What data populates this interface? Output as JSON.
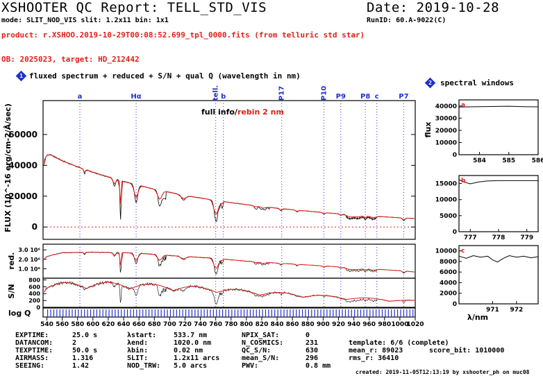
{
  "header": {
    "title": "XSHOOTER QC Report: TELL_STD_VIS",
    "date": "Date: 2019-10-28",
    "mode_line": "mode: SLIT_NOD_VIS slit: 1.2x11 bin: 1x1",
    "runid": "RunID: 60.A-9022(C)",
    "product": "product: r.XSHOO.2019-10-29T00:08:52.699_tpl_0000.fits (from telluric std star)",
    "ob_line": "OB: 2025023, target: HD_212442"
  },
  "panel1": {
    "badge": "1",
    "title": "fluxed spectrum + reduced + S/N + qual Q (wavelength in nm)",
    "legend_black": "full info/",
    "legend_red": "rebin 2 nm",
    "ylabel_flux": "FLUX (10^-16 erg/cm-2/Å/sec)",
    "ylabel_red": "red.",
    "ylabel_sn": "S/N",
    "ylabel_q": "log Q"
  },
  "panel2": {
    "badge": "2",
    "title": "spectral windows",
    "ylabel": "flux",
    "xlabel": "λ/nm"
  },
  "colors": {
    "black": "#000000",
    "red": "#e0201a",
    "blue": "#1f2fd0"
  },
  "chart_data": [
    {
      "type": "line",
      "name": "fluxed",
      "xlim": [
        535,
        1020
      ],
      "ylim": [
        -8000,
        82000
      ],
      "yticks": [
        0,
        20000,
        40000,
        60000
      ],
      "ytick_labels": [
        "0",
        "20000",
        "40000",
        "60000"
      ],
      "xticks": [
        540,
        560,
        580,
        600,
        620,
        640,
        660,
        680,
        700,
        720,
        740,
        760,
        780,
        800,
        820,
        840,
        860,
        880,
        900,
        920,
        940,
        960,
        980,
        1000,
        1020
      ],
      "xtick_labels": [
        "540",
        "560",
        "580",
        "600",
        "620",
        "640",
        "660",
        "680",
        "700",
        "720",
        "740",
        "760",
        "780",
        "800",
        "820",
        "840",
        "860",
        "880",
        "900",
        "920",
        "940",
        "960",
        "980",
        "1000",
        "1020"
      ],
      "zero_line": true,
      "continuum": {
        "x": [
          535,
          537,
          540,
          545,
          550,
          560,
          580,
          600,
          620,
          640,
          660,
          680,
          700,
          720,
          740,
          760,
          780,
          800,
          820,
          840,
          860,
          880,
          900,
          920,
          940,
          960,
          980,
          1000,
          1020
        ],
        "y": [
          30000,
          44000,
          46500,
          47000,
          45500,
          43000,
          39000,
          35500,
          32500,
          29500,
          27000,
          24500,
          22500,
          20500,
          18800,
          17300,
          15800,
          14500,
          13300,
          12200,
          11200,
          10300,
          9400,
          8600,
          7900,
          7200,
          6600,
          6000,
          5500
        ]
      },
      "absorptions": [
        {
          "x": 589.0,
          "depth": 0.08,
          "width": 1.2
        },
        {
          "x": 628.0,
          "depth": 0.15,
          "width": 2.0
        },
        {
          "x": 636.0,
          "depth": 0.85,
          "width": 1.0
        },
        {
          "x": 656.3,
          "depth": 0.42,
          "width": 2.8
        },
        {
          "x": 687.0,
          "depth": 0.35,
          "width": 3.0
        },
        {
          "x": 718.0,
          "depth": 0.15,
          "width": 4.0
        },
        {
          "x": 760.5,
          "depth": 0.75,
          "width": 3.2
        },
        {
          "x": 768.0,
          "depth": 0.1,
          "width": 1.5
        },
        {
          "x": 812.0,
          "depth": 0.07,
          "width": 3.0
        },
        {
          "x": 822.0,
          "depth": 0.1,
          "width": 3.0
        },
        {
          "x": 845.0,
          "depth": 0.12,
          "width": 2.0
        },
        {
          "x": 866.0,
          "depth": 0.1,
          "width": 2.0
        },
        {
          "x": 901.0,
          "depth": 0.1,
          "width": 2.0
        },
        {
          "x": 923.0,
          "depth": 0.12,
          "width": 2.0
        },
        {
          "x": 935.0,
          "depth": 0.25,
          "width": 5.0
        },
        {
          "x": 945.0,
          "depth": 0.2,
          "width": 5.0
        },
        {
          "x": 955.0,
          "depth": 0.22,
          "width": 2.0
        },
        {
          "x": 965.0,
          "depth": 0.18,
          "width": 4.0
        },
        {
          "x": 1005.0,
          "depth": 0.3,
          "width": 2.0
        }
      ],
      "line_markers": [
        {
          "x": 583,
          "label": "a"
        },
        {
          "x": 656.3,
          "label": "Hα"
        },
        {
          "x": 760,
          "label": "tell."
        },
        {
          "x": 770,
          "label": "b"
        },
        {
          "x": 846,
          "label": "P17"
        },
        {
          "x": 901,
          "label": "P10"
        },
        {
          "x": 923,
          "label": "P9"
        },
        {
          "x": 955,
          "label": "P8"
        },
        {
          "x": 970,
          "label": "c"
        },
        {
          "x": 1005,
          "label": "P7"
        }
      ]
    },
    {
      "type": "line",
      "name": "reduced",
      "ylim": [
        0,
        3600000
      ],
      "ytick_labels": [
        "3.0 10⁶",
        "2.0 10⁶",
        "1.0 10⁶"
      ],
      "yticks": [
        3000000,
        2000000,
        1000000
      ],
      "continuum": {
        "x": [
          535,
          540,
          560,
          600,
          640,
          660,
          700,
          740,
          760,
          780,
          800,
          840,
          880,
          920,
          960,
          1000,
          1020
        ],
        "y": [
          1900000,
          2300000,
          2700000,
          2750000,
          2700000,
          2650000,
          2400000,
          2200000,
          2100000,
          1950000,
          1800000,
          1600000,
          1400000,
          1200000,
          1000000,
          800000,
          650000
        ]
      }
    },
    {
      "type": "line",
      "name": "S/N",
      "ylim": [
        0,
        850
      ],
      "yticks": [
        800,
        600,
        400,
        200,
        0
      ],
      "ytick_labels": [
        "800",
        "600",
        "400",
        "200",
        "0"
      ],
      "continuum": {
        "x": [
          535,
          540,
          560,
          600,
          640,
          660,
          700,
          740,
          760,
          780,
          800,
          840,
          880,
          920,
          960,
          1000,
          1020
        ],
        "y": [
          550,
          680,
          720,
          730,
          720,
          700,
          650,
          600,
          580,
          540,
          500,
          440,
          380,
          320,
          270,
          220,
          200
        ]
      }
    },
    {
      "type": "bar",
      "name": "quality",
      "ylim": [
        0,
        1
      ],
      "flag_positions": [
        541,
        545,
        549,
        553,
        557,
        561,
        565,
        569,
        573,
        577,
        581,
        585,
        589,
        593,
        597,
        601,
        605,
        609,
        613,
        617,
        621,
        625,
        629,
        633,
        637,
        641,
        645,
        649,
        653,
        657,
        661,
        665,
        669,
        673,
        677,
        681,
        685,
        689,
        693,
        697,
        701,
        705,
        709,
        713,
        717,
        721,
        725,
        729,
        733,
        737,
        741,
        745,
        749,
        753,
        757,
        761,
        765,
        769,
        773,
        777,
        781,
        785,
        789,
        793,
        797,
        801,
        805,
        809,
        813,
        817,
        821,
        825,
        829,
        833,
        837,
        841,
        845,
        849,
        853,
        857,
        861,
        865,
        869,
        873,
        877,
        881,
        885,
        889,
        893,
        897,
        901,
        905,
        909,
        913,
        917,
        921,
        925,
        929,
        933,
        937,
        941,
        945,
        949,
        953,
        957,
        961,
        965,
        969,
        973,
        977,
        981,
        985,
        989,
        993,
        997,
        1001,
        1005,
        1009,
        1013,
        1017
      ]
    },
    {
      "type": "line",
      "name": "window a",
      "xlim": [
        583.3,
        586.0
      ],
      "ylim": [
        0,
        45000
      ],
      "xticks": [
        584,
        585,
        586
      ],
      "xtick_labels": [
        "584",
        "585",
        "586"
      ],
      "yticks": [
        0,
        10000,
        20000,
        30000,
        40000
      ],
      "ytick_labels": [
        "0",
        "10000",
        "20000",
        "30000",
        "40000"
      ],
      "x": [
        583.3,
        584.0,
        585.0,
        585.5,
        586.0
      ],
      "y": [
        39200,
        39500,
        39800,
        39500,
        39300
      ],
      "label": "a"
    },
    {
      "type": "line",
      "name": "window b",
      "xlim": [
        776.6,
        779.4
      ],
      "ylim": [
        0,
        17500
      ],
      "xticks": [
        777,
        778,
        779
      ],
      "xtick_labels": [
        "777",
        "778",
        "779"
      ],
      "yticks": [
        0,
        5000,
        10000,
        15000
      ],
      "ytick_labels": [
        "0",
        "5000",
        "10000",
        "15000"
      ],
      "x": [
        776.6,
        776.8,
        777.0,
        777.3,
        777.6,
        778.0,
        778.5,
        779.0,
        779.4
      ],
      "y": [
        16200,
        15400,
        14900,
        15500,
        15800,
        15900,
        15900,
        15900,
        15900
      ],
      "label": "b"
    },
    {
      "type": "line",
      "name": "window c",
      "xlim": [
        969.6,
        972.9
      ],
      "ylim": [
        0,
        11000
      ],
      "xticks": [
        971,
        972
      ],
      "xtick_labels": [
        "971",
        "972"
      ],
      "yticks": [
        0,
        2000,
        4000,
        6000,
        8000,
        10000
      ],
      "ytick_labels": [
        "0",
        "2000",
        "4000",
        "6000",
        "8000",
        "10000"
      ],
      "x": [
        969.6,
        969.9,
        970.2,
        970.5,
        970.8,
        971.0,
        971.2,
        971.5,
        971.7,
        972.0,
        972.3,
        972.6,
        972.9
      ],
      "y": [
        9000,
        8600,
        9100,
        8800,
        9000,
        8300,
        7900,
        8700,
        9100,
        8800,
        9000,
        8700,
        8900
      ],
      "label": "c"
    }
  ],
  "footer": {
    "col1": [
      {
        "label": "EXPTIME:",
        "value": "25.0 s"
      },
      {
        "label": "DATANCOM:",
        "value": "2"
      },
      {
        "label": "TEXPTIME:",
        "value": "50.0 s"
      },
      {
        "label": "AIRMASS:",
        "value": "1.316"
      },
      {
        "label": "SEEING:",
        "value": "1.42"
      }
    ],
    "col2": [
      {
        "label": "λstart:",
        "value": "533.7 nm"
      },
      {
        "label": "λend:",
        "value": "1020.0 nm"
      },
      {
        "label": "λbin:",
        "value": "0.02 nm"
      },
      {
        "label": "SLIT:",
        "value": "1.2x11 arcs"
      },
      {
        "label": "NOD_TRW:",
        "value": "5.0 arcs"
      }
    ],
    "col3": [
      {
        "label": "NPIX_SAT:",
        "value": "0"
      },
      {
        "label": "N_COSMICS:",
        "value": "231"
      },
      {
        "label": "QC_S/N:",
        "value": "630"
      },
      {
        "label": "mean_S/N:",
        "value": "296"
      },
      {
        "label": "PWV:",
        "value": "0.8 mm"
      }
    ],
    "template": "template: 6/6 (complete)",
    "mean_r": "mean_r: 89023",
    "score_bit": "score_bit: 1010000",
    "rms_r": "rms_r: 36410",
    "created": "created: 2019-11-05T12:13:19 by xshooter_ph on muc08"
  }
}
